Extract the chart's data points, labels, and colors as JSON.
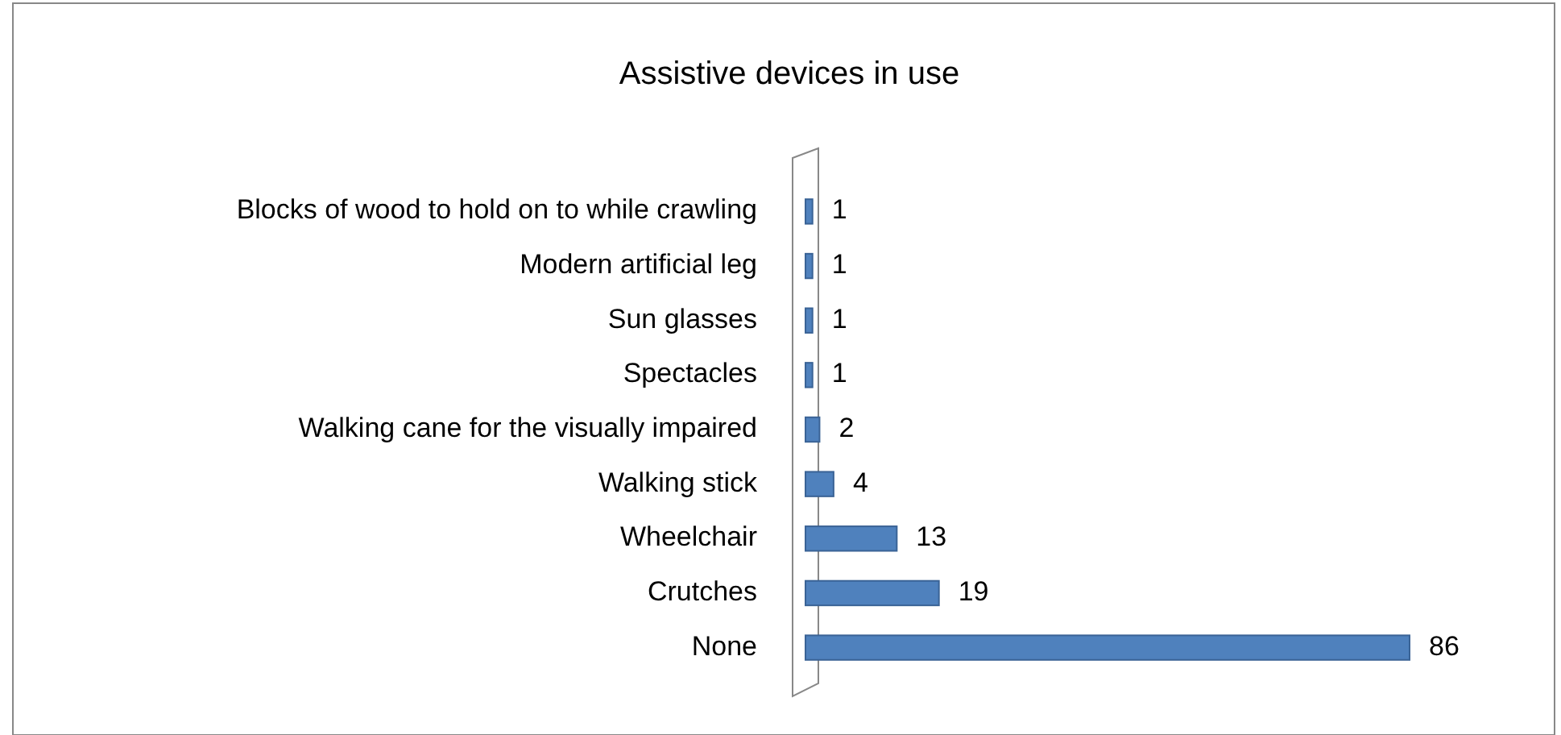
{
  "chart_data": {
    "type": "bar",
    "orientation": "horizontal",
    "title": "Assistive devices in use",
    "categories": [
      "Blocks of wood to hold on to while crawling",
      "Modern artificial leg",
      "Sun glasses",
      "Spectacles",
      "Walking cane for the visually impaired",
      "Walking stick",
      "Wheelchair",
      "Crutches",
      "None"
    ],
    "values": [
      1,
      1,
      1,
      1,
      2,
      4,
      13,
      19,
      86
    ],
    "color": "#4f81bd",
    "data_labels": true
  }
}
